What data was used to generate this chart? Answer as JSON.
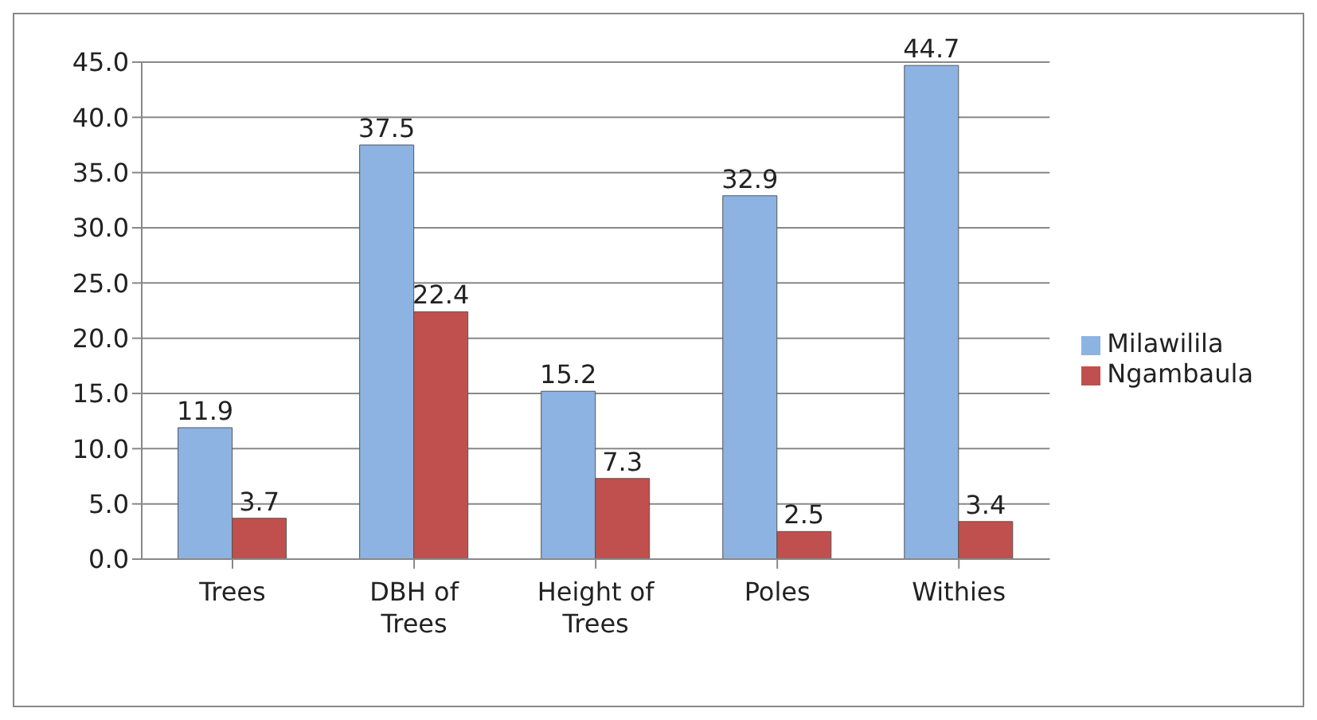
{
  "chart_data": {
    "type": "bar",
    "categories": [
      "Trees",
      "DBH of Trees",
      "Height of Trees",
      "Poles",
      "Withies"
    ],
    "series": [
      {
        "name": "Milawilila",
        "color": "#8db3e2",
        "values": [
          11.9,
          37.5,
          15.2,
          32.9,
          44.7
        ]
      },
      {
        "name": "Ngambaula",
        "color": "#c0504d",
        "values": [
          3.7,
          22.4,
          7.3,
          2.5,
          3.4
        ]
      }
    ],
    "ylim": [
      0,
      45
    ],
    "yticks": [
      {
        "value": 0,
        "label": "0.0"
      },
      {
        "value": 5,
        "label": "5.0"
      },
      {
        "value": 10,
        "label": "10.0"
      },
      {
        "value": 15,
        "label": "15.0"
      },
      {
        "value": 20,
        "label": "20.0"
      },
      {
        "value": 25,
        "label": "25.0"
      },
      {
        "value": 30,
        "label": "30.0"
      },
      {
        "value": 35,
        "label": "35.0"
      },
      {
        "value": 40,
        "label": "40.0"
      },
      {
        "value": 45,
        "label": "45.0"
      }
    ],
    "grid": "y",
    "legend": "right",
    "data_labels": true
  }
}
